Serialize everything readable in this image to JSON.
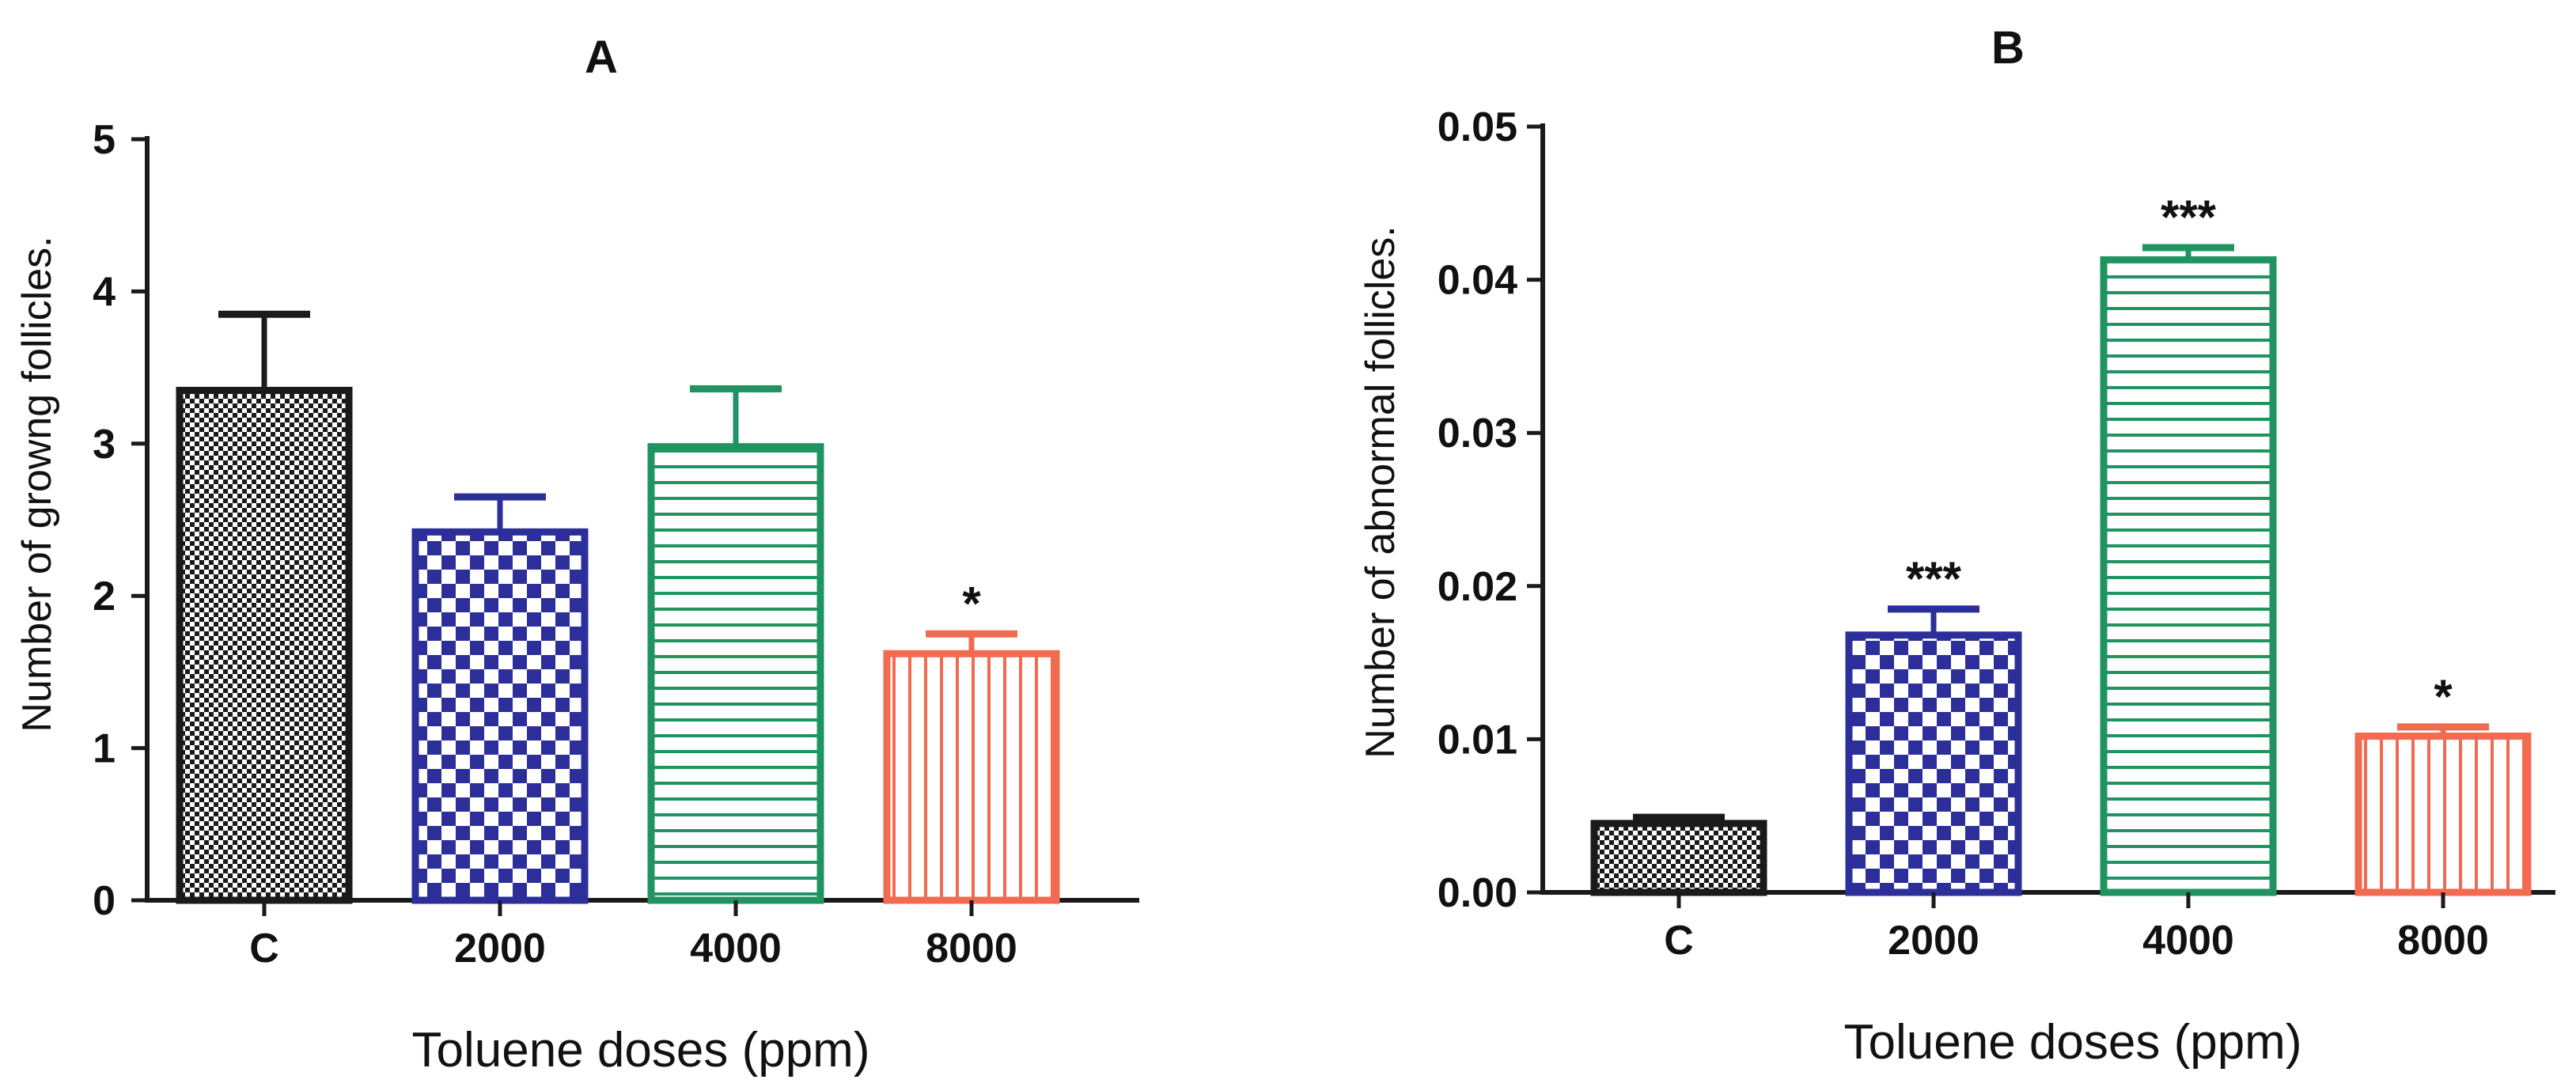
{
  "figure": {
    "colors": {
      "control": "#1a1a1a",
      "d2000": "#2c2f9a",
      "d4000": "#1f9461",
      "d8000": "#f26a50",
      "axis": "#1a1a1a"
    }
  },
  "chart_data": [
    {
      "type": "bar",
      "panel": "A",
      "title": "A",
      "xlabel": "Toluene doses (ppm)",
      "ylabel": "Number of growng follicles.",
      "categories": [
        "C",
        "2000",
        "4000",
        "8000"
      ],
      "values": [
        3.35,
        2.42,
        2.98,
        1.62
      ],
      "errors": [
        0.5,
        0.23,
        0.38,
        0.13
      ],
      "significance": [
        "",
        "",
        "",
        "*"
      ],
      "ylim": [
        0,
        5
      ],
      "yticks": [
        0,
        1,
        2,
        3,
        4,
        5
      ],
      "ytick_labels": [
        "0",
        "1",
        "2",
        "3",
        "4",
        "5"
      ],
      "patterns": [
        "checker-fine",
        "checker-coarse",
        "horizontal-lines",
        "vertical-lines"
      ],
      "colors": [
        "#1a1a1a",
        "#2c2f9a",
        "#1f9461",
        "#f26a50"
      ]
    },
    {
      "type": "bar",
      "panel": "B",
      "title": "B",
      "xlabel": "Toluene doses (ppm)",
      "ylabel": "Number of abnormal follicles.",
      "categories": [
        "C",
        "2000",
        "4000",
        "8000"
      ],
      "values": [
        0.0045,
        0.0168,
        0.0413,
        0.0102
      ],
      "errors": [
        0.0004,
        0.0017,
        0.0008,
        0.0006
      ],
      "significance": [
        "",
        "***",
        "***",
        "*"
      ],
      "ylim": [
        0,
        0.05
      ],
      "yticks": [
        0,
        0.01,
        0.02,
        0.03,
        0.04,
        0.05
      ],
      "ytick_labels": [
        "0.00",
        "0.01",
        "0.02",
        "0.03",
        "0.04",
        "0.05"
      ],
      "patterns": [
        "checker-fine",
        "checker-coarse",
        "horizontal-lines",
        "vertical-lines"
      ],
      "colors": [
        "#1a1a1a",
        "#2c2f9a",
        "#1f9461",
        "#f26a50"
      ]
    }
  ]
}
